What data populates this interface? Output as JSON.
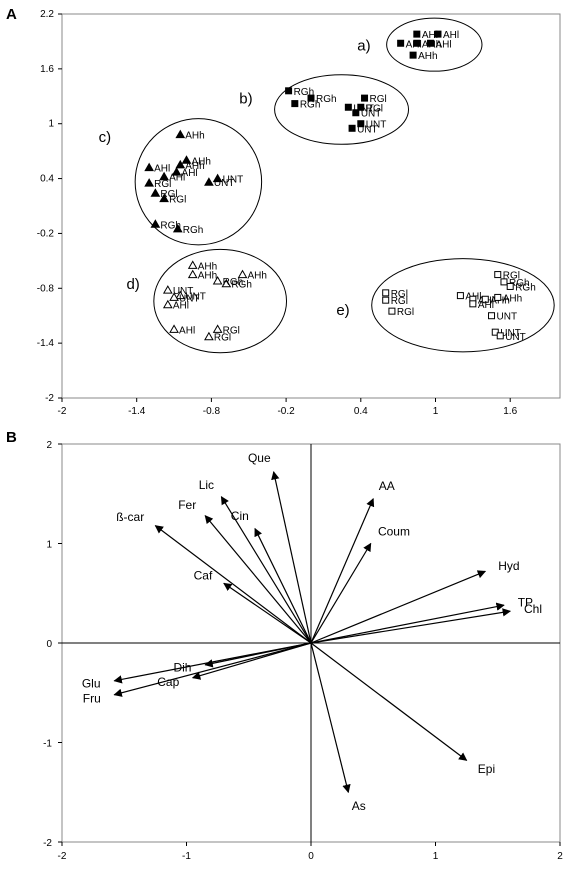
{
  "chart_data": [
    {
      "type": "scatter",
      "panel_label": "A",
      "xlim": [
        -2,
        2
      ],
      "ylim": [
        -2,
        2.2
      ],
      "xticks": [
        "-2",
        "-1.4",
        "-0.8",
        "-0.2",
        "0.4",
        "1",
        "1.6"
      ],
      "yticks": [
        "-2",
        "-1.4",
        "-0.8",
        "-0.2",
        "0.4",
        "1",
        "1.6",
        "2.2"
      ],
      "grid": false,
      "groups": [
        {
          "label": "a)",
          "marker": "filled-square",
          "points": [
            {
              "x": 0.85,
              "y": 1.98,
              "label": "AHl"
            },
            {
              "x": 1.02,
              "y": 1.98,
              "label": "AHl"
            },
            {
              "x": 0.72,
              "y": 1.88,
              "label": "AHl"
            },
            {
              "x": 0.85,
              "y": 1.88,
              "label": "AHh"
            },
            {
              "x": 0.96,
              "y": 1.88,
              "label": "AHl"
            },
            {
              "x": 0.82,
              "y": 1.75,
              "label": "AHh"
            }
          ]
        },
        {
          "label": "b)",
          "marker": "filled-square",
          "points": [
            {
              "x": -0.18,
              "y": 1.36,
              "label": "RGh"
            },
            {
              "x": 0.0,
              "y": 1.28,
              "label": "RGh"
            },
            {
              "x": -0.13,
              "y": 1.22,
              "label": "RGh"
            },
            {
              "x": 0.43,
              "y": 1.28,
              "label": "RGl"
            },
            {
              "x": 0.4,
              "y": 1.18,
              "label": "RGl"
            },
            {
              "x": 0.3,
              "y": 1.18,
              "label": "UNT"
            },
            {
              "x": 0.36,
              "y": 1.12,
              "label": "UNT"
            },
            {
              "x": 0.4,
              "y": 1.0,
              "label": "UNT"
            },
            {
              "x": 0.33,
              "y": 0.95,
              "label": "UNT"
            }
          ]
        },
        {
          "label": "c)",
          "marker": "filled-triangle",
          "points": [
            {
              "x": -1.05,
              "y": 0.88,
              "label": "AHh"
            },
            {
              "x": -1.0,
              "y": 0.6,
              "label": "AHh"
            },
            {
              "x": -1.05,
              "y": 0.55,
              "label": "AHh"
            },
            {
              "x": -1.3,
              "y": 0.52,
              "label": "AHl"
            },
            {
              "x": -1.08,
              "y": 0.47,
              "label": "AHl"
            },
            {
              "x": -1.18,
              "y": 0.42,
              "label": "AHl"
            },
            {
              "x": -1.3,
              "y": 0.35,
              "label": "RGl"
            },
            {
              "x": -1.25,
              "y": 0.24,
              "label": "RGl"
            },
            {
              "x": -1.18,
              "y": 0.18,
              "label": "RGl"
            },
            {
              "x": -0.75,
              "y": 0.4,
              "label": "UNT"
            },
            {
              "x": -0.82,
              "y": 0.36,
              "label": "UNT"
            },
            {
              "x": -1.25,
              "y": -0.1,
              "label": "RGh"
            },
            {
              "x": -1.07,
              "y": -0.15,
              "label": "RGh"
            }
          ]
        },
        {
          "label": "d)",
          "marker": "open-triangle",
          "points": [
            {
              "x": -0.95,
              "y": -0.55,
              "label": "AHh"
            },
            {
              "x": -0.95,
              "y": -0.65,
              "label": "AHh"
            },
            {
              "x": -0.55,
              "y": -0.65,
              "label": "AHh"
            },
            {
              "x": -0.68,
              "y": -0.75,
              "label": "RGh"
            },
            {
              "x": -0.75,
              "y": -0.72,
              "label": "RGh"
            },
            {
              "x": -1.15,
              "y": -0.82,
              "label": "UNT"
            },
            {
              "x": -1.05,
              "y": -0.88,
              "label": "UNT"
            },
            {
              "x": -1.1,
              "y": -0.9,
              "label": "UNT"
            },
            {
              "x": -1.15,
              "y": -0.98,
              "label": "AHl"
            },
            {
              "x": -1.1,
              "y": -1.25,
              "label": "AHl"
            },
            {
              "x": -0.75,
              "y": -1.25,
              "label": "RGl"
            },
            {
              "x": -0.82,
              "y": -1.33,
              "label": "RGl"
            }
          ]
        },
        {
          "label": "e)",
          "marker": "open-square",
          "points": [
            {
              "x": 1.5,
              "y": -0.65,
              "label": "RGl"
            },
            {
              "x": 1.55,
              "y": -0.73,
              "label": "RGh"
            },
            {
              "x": 1.6,
              "y": -0.78,
              "label": "RGh"
            },
            {
              "x": 0.6,
              "y": -0.85,
              "label": "RGl"
            },
            {
              "x": 0.6,
              "y": -0.93,
              "label": "RGl"
            },
            {
              "x": 0.65,
              "y": -1.05,
              "label": "RGl"
            },
            {
              "x": 1.2,
              "y": -0.88,
              "label": "AHl"
            },
            {
              "x": 1.3,
              "y": -0.92,
              "label": "AHl"
            },
            {
              "x": 1.4,
              "y": -0.92,
              "label": "AHh"
            },
            {
              "x": 1.3,
              "y": -0.97,
              "label": "AHl"
            },
            {
              "x": 1.5,
              "y": -0.9,
              "label": "AHh"
            },
            {
              "x": 1.45,
              "y": -1.1,
              "label": "UNT"
            },
            {
              "x": 1.48,
              "y": -1.28,
              "label": "UNT"
            },
            {
              "x": 1.52,
              "y": -1.32,
              "label": "UNT"
            }
          ]
        }
      ]
    },
    {
      "type": "biplot-vectors",
      "panel_label": "B",
      "xlim": [
        -2,
        2
      ],
      "ylim": [
        -2,
        2
      ],
      "xticks": [
        "-2",
        "-1",
        "0",
        "1",
        "2"
      ],
      "yticks": [
        "-2",
        "-1",
        "0",
        "1",
        "2"
      ],
      "grid": false,
      "vectors": [
        {
          "label": "Que",
          "x": -0.3,
          "y": 1.72
        },
        {
          "label": "Lic",
          "x": -0.72,
          "y": 1.47
        },
        {
          "label": "Fer",
          "x": -0.85,
          "y": 1.28
        },
        {
          "label": "Cin",
          "x": -0.45,
          "y": 1.15
        },
        {
          "label": "ß-car",
          "x": -1.25,
          "y": 1.18
        },
        {
          "label": "Caf",
          "x": -0.7,
          "y": 0.6
        },
        {
          "label": "AA",
          "x": 0.5,
          "y": 1.45
        },
        {
          "label": "Coum",
          "x": 0.48,
          "y": 1.0
        },
        {
          "label": "Hyd",
          "x": 1.4,
          "y": 0.72
        },
        {
          "label": "TP",
          "x": 1.55,
          "y": 0.38
        },
        {
          "label": "Chl",
          "x": 1.6,
          "y": 0.32
        },
        {
          "label": "Glu",
          "x": -1.58,
          "y": -0.38
        },
        {
          "label": "Fru",
          "x": -1.58,
          "y": -0.52
        },
        {
          "label": "Cap",
          "x": -0.95,
          "y": -0.35
        },
        {
          "label": "Dih",
          "x": -0.85,
          "y": -0.22
        },
        {
          "label": "Epi",
          "x": 1.25,
          "y": -1.18
        },
        {
          "label": "As",
          "x": 0.3,
          "y": -1.5
        }
      ]
    }
  ]
}
